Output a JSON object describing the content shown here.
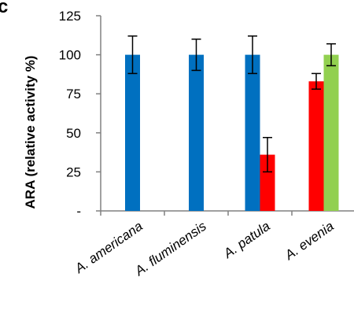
{
  "panel_label": "c",
  "chart_data": {
    "type": "bar",
    "title": "",
    "ylabel": "ARA (relative activity %)",
    "xlabel": "",
    "ylim": [
      0,
      125
    ],
    "y_ticks": [
      {
        "value": 0,
        "label": "-"
      },
      {
        "value": 25,
        "label": "25"
      },
      {
        "value": 50,
        "label": "50"
      },
      {
        "value": 75,
        "label": "75"
      },
      {
        "value": 100,
        "label": "100"
      },
      {
        "value": 125,
        "label": "125"
      }
    ],
    "categories": [
      "A. americana",
      "A. fluminensis",
      "A. patula",
      "A. evenia"
    ],
    "bars": [
      {
        "category": "A. americana",
        "value": 100,
        "error": 12,
        "color": "#0070C0"
      },
      {
        "category": "A. fluminensis",
        "value": 100,
        "error": 10,
        "color": "#0070C0"
      },
      {
        "category": "A. patula",
        "value": 100,
        "error": 12,
        "color": "#0070C0"
      },
      {
        "category": "A. patula",
        "value": 36,
        "error": 11,
        "color": "#FF0000"
      },
      {
        "category": "A. evenia",
        "value": 83,
        "error": 5,
        "color": "#FF0000"
      },
      {
        "category": "A. evenia",
        "value": 100,
        "error": 7,
        "color": "#92D050"
      }
    ],
    "grid": false,
    "legend": "none"
  }
}
